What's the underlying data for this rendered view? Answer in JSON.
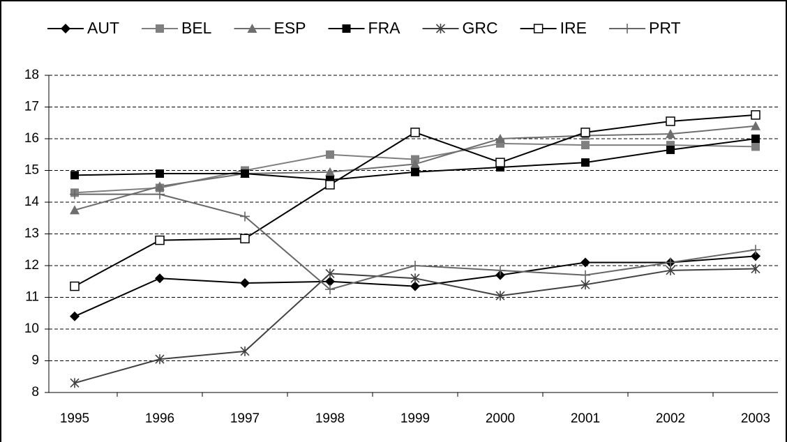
{
  "chart_data": {
    "type": "line",
    "categories": [
      "1995",
      "1996",
      "1997",
      "1998",
      "1999",
      "2000",
      "2001",
      "2002",
      "2003"
    ],
    "series": [
      {
        "name": "AUT",
        "color": "#000000",
        "marker": "diamond",
        "values": [
          10.4,
          11.6,
          11.45,
          11.5,
          11.35,
          11.7,
          12.1,
          12.1,
          12.3
        ]
      },
      {
        "name": "BEL",
        "color": "#7f7f7f",
        "marker": "square",
        "values": [
          14.3,
          14.45,
          15.0,
          15.5,
          15.35,
          15.85,
          15.8,
          15.8,
          15.75
        ]
      },
      {
        "name": "ESP",
        "color": "#6e6e6e",
        "marker": "triangle",
        "values": [
          13.75,
          14.5,
          14.9,
          14.95,
          15.2,
          16.0,
          16.1,
          16.15,
          16.4
        ]
      },
      {
        "name": "FRA",
        "color": "#000000",
        "marker": "square",
        "values": [
          14.85,
          14.9,
          14.9,
          14.7,
          14.95,
          15.1,
          15.25,
          15.65,
          16.0
        ]
      },
      {
        "name": "GRC",
        "color": "#404040",
        "marker": "asterisk",
        "values": [
          8.3,
          9.05,
          9.3,
          11.75,
          11.6,
          11.05,
          11.4,
          11.85,
          11.9
        ]
      },
      {
        "name": "IRE",
        "color": "#000000",
        "marker": "open-square",
        "values": [
          11.35,
          12.8,
          12.85,
          14.55,
          16.2,
          15.25,
          16.2,
          16.55,
          16.75
        ]
      },
      {
        "name": "PRT",
        "color": "#666666",
        "marker": "plus",
        "values": [
          14.25,
          14.25,
          13.55,
          11.25,
          12.0,
          11.85,
          11.7,
          12.1,
          12.5
        ]
      }
    ],
    "ylim": [
      8,
      18
    ],
    "yticks": [
      8,
      9,
      10,
      11,
      12,
      13,
      14,
      15,
      16,
      17,
      18
    ],
    "grid": true,
    "legend": "top"
  }
}
